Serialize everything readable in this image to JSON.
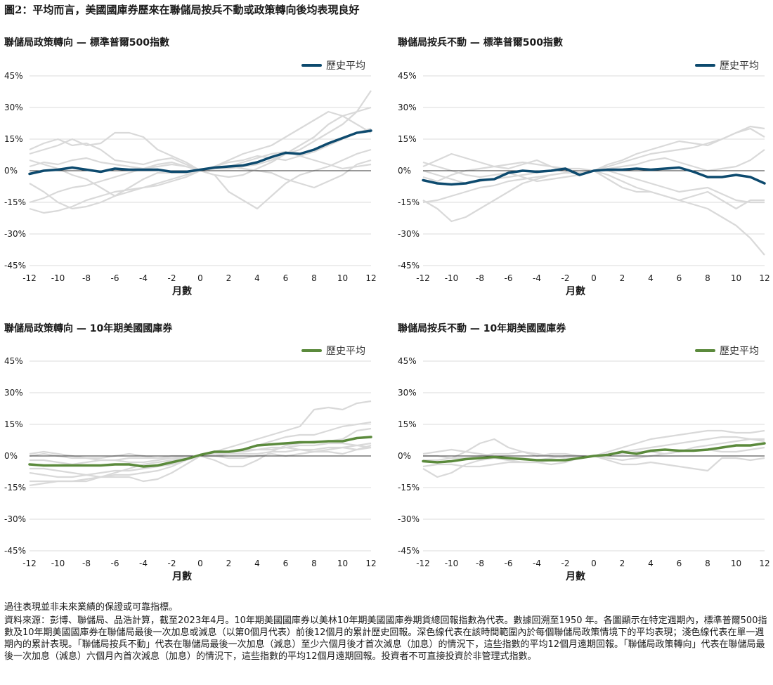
{
  "figure_title": "圖2：平均而言，美國國庫券歷來在聯儲局按兵不動或政策轉向後均表現良好",
  "colors": {
    "sp500_avg": "#0d4a6e",
    "treasury_avg": "#5b8a3c",
    "background_line": "#d9d9d9",
    "zero_line": "#333333"
  },
  "chart_data": [
    {
      "type": "line",
      "title": "聯儲局政策轉向 — 標準普爾500指數",
      "xlabel": "月數",
      "legend": "歷史平均",
      "legend_position": "top-right",
      "x": [
        -12,
        -11,
        -10,
        -9,
        -8,
        -7,
        -6,
        -5,
        -4,
        -3,
        -2,
        -1,
        0,
        1,
        2,
        3,
        4,
        5,
        6,
        7,
        8,
        9,
        10,
        11,
        12
      ],
      "ylim": [
        -45,
        45
      ],
      "yticks": [
        "45%",
        "30%",
        "15%",
        "0%",
        "-15%",
        "-30%",
        "-45%"
      ],
      "xticks": [
        "-12",
        "-10",
        "-8",
        "-6",
        "-4",
        "-2",
        "0",
        "2",
        "4",
        "6",
        "8",
        "10",
        "12"
      ],
      "average": [
        -1.5,
        0,
        0.5,
        1.5,
        0.5,
        -0.5,
        1,
        0.5,
        0.5,
        0.5,
        -0.5,
        -0.5,
        0.5,
        1.5,
        2,
        2.5,
        4,
        6.5,
        8.5,
        8,
        10,
        13,
        15.5,
        18,
        19
      ],
      "history": [
        [
          8,
          10,
          12,
          15,
          12,
          13,
          18,
          18,
          16,
          10,
          7,
          4,
          0,
          -2,
          -3,
          -2,
          1,
          4,
          8,
          10,
          14,
          18,
          22,
          28,
          38
        ],
        [
          10,
          13,
          15,
          12,
          13,
          10,
          5,
          4,
          3,
          5,
          6,
          3,
          0,
          1,
          1,
          2,
          3,
          5,
          8,
          12,
          16,
          22,
          26,
          28,
          30
        ],
        [
          5,
          3,
          1,
          -2,
          -4,
          -8,
          -12,
          -10,
          -8,
          -6,
          -4,
          -2,
          0,
          2,
          5,
          8,
          10,
          12,
          16,
          20,
          24,
          28,
          26,
          22,
          18
        ],
        [
          -6,
          -10,
          -15,
          -18,
          -17,
          -15,
          -12,
          -8,
          -4,
          -1,
          -1,
          -1,
          0,
          -2,
          -10,
          -14,
          -18,
          -12,
          -6,
          -2,
          0,
          2,
          5,
          8,
          10
        ],
        [
          -15,
          -13,
          -10,
          -8,
          -7,
          -5,
          -3,
          -1,
          1,
          2,
          3,
          2,
          0,
          2,
          4,
          5,
          7,
          6,
          5,
          7,
          9,
          12,
          15,
          18,
          20
        ],
        [
          -18,
          -20,
          -19,
          -17,
          -14,
          -12,
          -10,
          -9,
          -8,
          -7,
          -5,
          -3,
          0,
          1,
          2,
          1,
          0,
          -1,
          -4,
          -6,
          -8,
          -5,
          -2,
          3,
          5
        ],
        [
          2,
          4,
          3,
          5,
          6,
          4,
          3,
          2,
          1,
          3,
          4,
          2,
          0,
          1,
          2,
          4,
          6,
          8,
          9,
          7,
          5,
          3,
          1,
          2,
          3
        ]
      ]
    },
    {
      "type": "line",
      "title": "聯儲局按兵不動 — 標準普爾500指數",
      "xlabel": "月數",
      "legend": "歷史平均",
      "legend_position": "top-right",
      "x": [
        -12,
        -11,
        -10,
        -9,
        -8,
        -7,
        -6,
        -5,
        -4,
        -3,
        -2,
        -1,
        0,
        1,
        2,
        3,
        4,
        5,
        6,
        7,
        8,
        9,
        10,
        11,
        12
      ],
      "ylim": [
        -45,
        45
      ],
      "yticks": [
        "45%",
        "30%",
        "15%",
        "0%",
        "-15%",
        "-30%",
        "-45%"
      ],
      "xticks": [
        "-12",
        "-10",
        "-8",
        "-6",
        "-4",
        "-2",
        "0",
        "2",
        "4",
        "6",
        "8",
        "10",
        "12"
      ],
      "average": [
        -4.5,
        -6,
        -6.5,
        -6,
        -4.5,
        -4,
        -1,
        0,
        -0.5,
        0,
        1,
        -2,
        0,
        0.5,
        0.5,
        1,
        0.5,
        1,
        1.5,
        -0.5,
        -3,
        -3,
        -2,
        -3,
        -6
      ],
      "history": [
        [
          2,
          5,
          8,
          6,
          4,
          2,
          1,
          3,
          5,
          2,
          0,
          -2,
          0,
          3,
          5,
          8,
          10,
          12,
          14,
          13,
          12,
          15,
          18,
          21,
          20
        ],
        [
          -14,
          -18,
          -24,
          -22,
          -18,
          -14,
          -10,
          -6,
          -4,
          -2,
          -1,
          -1,
          0,
          2,
          4,
          6,
          8,
          9,
          10,
          11,
          13,
          15,
          18,
          20,
          16
        ],
        [
          -3,
          -5,
          -2,
          0,
          1,
          2,
          3,
          4,
          3,
          2,
          1,
          -1,
          0,
          -2,
          -5,
          -8,
          -10,
          -12,
          -14,
          -16,
          -18,
          -22,
          -26,
          -32,
          -40
        ],
        [
          -15,
          -14,
          -12,
          -10,
          -8,
          -7,
          -5,
          -4,
          -3,
          -2,
          -1,
          -1,
          0,
          -4,
          -8,
          -10,
          -10,
          -12,
          -14,
          -12,
          -10,
          -14,
          -18,
          -14,
          -14
        ],
        [
          0,
          -2,
          -4,
          -6,
          -5,
          -4,
          -3,
          -2,
          -1,
          0,
          1,
          1,
          0,
          1,
          2,
          3,
          5,
          6,
          4,
          2,
          0,
          1,
          2,
          5,
          10
        ],
        [
          4,
          2,
          0,
          -2,
          -3,
          -2,
          -1,
          -3,
          -5,
          -4,
          -3,
          -2,
          0,
          0,
          -2,
          -4,
          -6,
          -8,
          -10,
          -9,
          -8,
          -11,
          -14,
          -15,
          -15
        ]
      ]
    },
    {
      "type": "line",
      "title": "聯儲局政策轉向 — 10年期美國國庫券",
      "xlabel": "月數",
      "legend": "歷史平均",
      "legend_position": "top-right",
      "x": [
        -12,
        -11,
        -10,
        -9,
        -8,
        -7,
        -6,
        -5,
        -4,
        -3,
        -2,
        -1,
        0,
        1,
        2,
        3,
        4,
        5,
        6,
        7,
        8,
        9,
        10,
        11,
        12
      ],
      "ylim": [
        -45,
        45
      ],
      "yticks": [
        "45%",
        "30%",
        "15%",
        "0%",
        "-15%",
        "-30%",
        "-45%"
      ],
      "xticks": [
        "-12",
        "-10",
        "-8",
        "-6",
        "-4",
        "-2",
        "0",
        "2",
        "4",
        "6",
        "8",
        "10",
        "12"
      ],
      "average": [
        -4,
        -4.5,
        -4.5,
        -4.5,
        -4.5,
        -4.5,
        -4,
        -4,
        -5,
        -4.5,
        -3,
        -1.5,
        0.5,
        2,
        2,
        3,
        5,
        5.5,
        6,
        6.5,
        6.5,
        7,
        7,
        8.5,
        9
      ],
      "history": [
        [
          1,
          2,
          1,
          0,
          -1,
          -1,
          0,
          1,
          0,
          -1,
          -1,
          0,
          0,
          2,
          4,
          6,
          8,
          10,
          12,
          14,
          22,
          23,
          22,
          25,
          26
        ],
        [
          -12,
          -12,
          -12,
          -12,
          -12,
          -10,
          -8,
          -6,
          -4,
          -3,
          -2,
          -1,
          0,
          1,
          1,
          3,
          5,
          7,
          9,
          10,
          10,
          12,
          14,
          15,
          16
        ],
        [
          -6,
          -6,
          -7,
          -8,
          -9,
          -10,
          -10,
          -10,
          -12,
          -11,
          -8,
          -4,
          0,
          -2,
          -5,
          -5,
          -2,
          2,
          5,
          6,
          7,
          7,
          8,
          12,
          13
        ],
        [
          -2,
          -2,
          -3,
          -4,
          -3,
          -2,
          -2,
          -1,
          -1,
          -1,
          0,
          0,
          0,
          1,
          2,
          3,
          3,
          4,
          4,
          5,
          5,
          6,
          6,
          5,
          4
        ],
        [
          -8,
          -9,
          -10,
          -10,
          -9,
          -8,
          -7,
          -7,
          -6,
          -5,
          -4,
          -2,
          0,
          0,
          -1,
          -1,
          0,
          1,
          0,
          1,
          2,
          3,
          4,
          5,
          6
        ],
        [
          -14,
          -13,
          -12,
          -12,
          -11,
          -10,
          -9,
          -9,
          -8,
          -7,
          -5,
          -2,
          0,
          1,
          2,
          2,
          3,
          3,
          4,
          3,
          2,
          2,
          1,
          3,
          5
        ],
        [
          0,
          1,
          0,
          -1,
          -1,
          -2,
          -2,
          -3,
          -3,
          -2,
          -1,
          -1,
          0,
          0,
          1,
          1,
          1,
          2,
          2,
          3,
          3,
          4,
          4,
          3,
          4
        ]
      ]
    },
    {
      "type": "line",
      "title": "聯儲局按兵不動 — 10年期美國國庫券",
      "xlabel": "月數",
      "legend": "歷史平均",
      "legend_position": "top-right",
      "x": [
        -12,
        -11,
        -10,
        -9,
        -8,
        -7,
        -6,
        -5,
        -4,
        -3,
        -2,
        -1,
        0,
        1,
        2,
        3,
        4,
        5,
        6,
        7,
        8,
        9,
        10,
        11,
        12
      ],
      "ylim": [
        -45,
        45
      ],
      "yticks": [
        "45%",
        "30%",
        "15%",
        "0%",
        "-15%",
        "-30%",
        "-45%"
      ],
      "xticks": [
        "-12",
        "-10",
        "-8",
        "-6",
        "-4",
        "-2",
        "0",
        "2",
        "4",
        "6",
        "8",
        "10",
        "12"
      ],
      "average": [
        -2.5,
        -3,
        -2.5,
        -1.5,
        -1,
        -0.5,
        -1,
        -1.5,
        -2,
        -2,
        -2,
        -1,
        0,
        0.5,
        2,
        1,
        2.5,
        3,
        2.5,
        2.5,
        3,
        4,
        5,
        5,
        6
      ],
      "history": [
        [
          1,
          2,
          3,
          2,
          1,
          0,
          -1,
          -1,
          -2,
          -1,
          0,
          0,
          0,
          2,
          4,
          6,
          8,
          9,
          10,
          11,
          12,
          12,
          11,
          11,
          12
        ],
        [
          -6,
          -10,
          -8,
          -4,
          -2,
          -1,
          -2,
          -3,
          -3,
          -4,
          -3,
          -1,
          0,
          1,
          2,
          3,
          4,
          5,
          6,
          7,
          8,
          9,
          9,
          8,
          8
        ],
        [
          -2,
          -2,
          -1,
          2,
          6,
          8,
          4,
          2,
          0,
          1,
          1,
          0,
          0,
          -1,
          -2,
          -1,
          0,
          1,
          2,
          4,
          5,
          6,
          7,
          8,
          7
        ],
        [
          -5,
          -4,
          -4,
          -5,
          -5,
          -4,
          -3,
          -3,
          -3,
          -2,
          -2,
          -1,
          0,
          -2,
          -4,
          -4,
          -3,
          -4,
          -5,
          -6,
          -7,
          -1,
          -1,
          -2,
          -1
        ],
        [
          0,
          0,
          -1,
          -1,
          0,
          1,
          1,
          2,
          1,
          0,
          -1,
          -1,
          0,
          1,
          1,
          2,
          2,
          1,
          2,
          3,
          3,
          2,
          2,
          3,
          4
        ]
      ]
    }
  ],
  "footnote": {
    "line1": "過往表現並非未來業績的保證或可靠指標。",
    "line2": "資料來源：彭博、聯儲局、品浩計算，截至2023年4月。10年期美國國庫券以美林10年期美國國庫券期貨總回報指數為代表。數據回溯至1950 年。各圖顯示在特定週期內，標準普爾500指數及10年期美國國庫券在聯儲局最後一次加息或減息（以第0個月代表）前後12個月的累計歷史回報。深色線代表在該時間範圍內於每個聯儲局政策情境下的平均表現；淺色線代表在單一週期內的累計表現。「聯儲局按兵不動」代表在聯儲局最後一次加息（減息）至少六個月後才首次減息（加息）的情況下，這些指數的平均12個月遠期回報。「聯儲局政策轉向」代表在聯儲局最後一次加息（減息）六個月內首次減息（加息）的情況下，這些指數的平均12個月遠期回報。投資者不可直接投資於非管理式指數。"
  }
}
